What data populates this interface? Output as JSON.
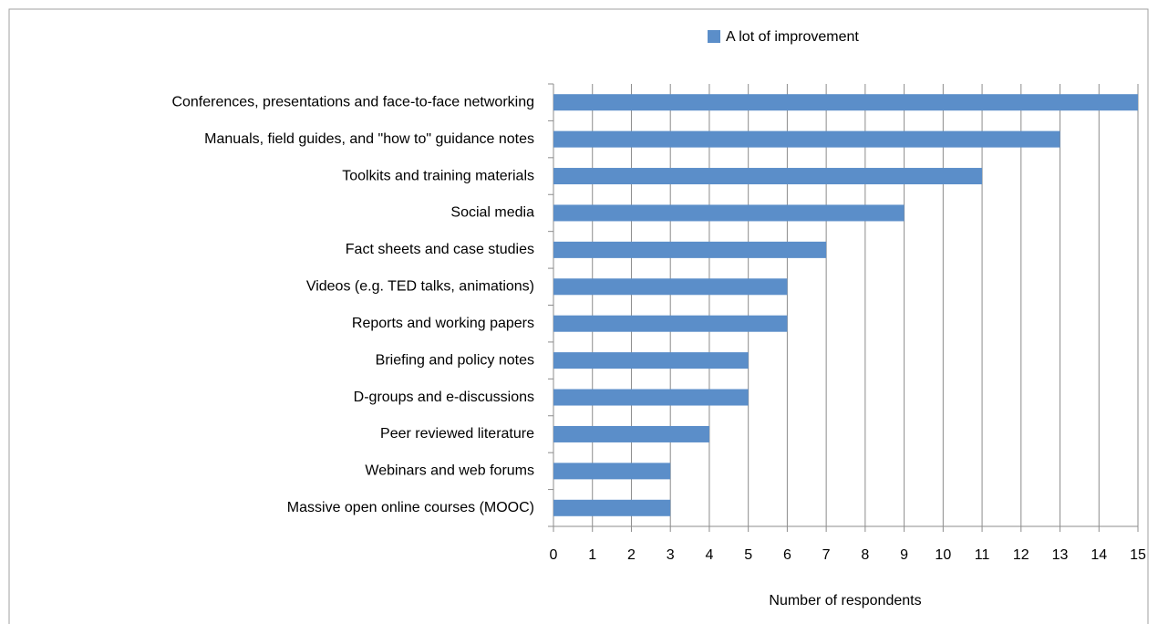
{
  "chart_data": {
    "type": "bar",
    "orientation": "horizontal",
    "categories": [
      "Conferences, presentations and face-to-face networking",
      "Manuals, field guides, and \"how to\" guidance notes",
      "Toolkits and training materials",
      "Social media",
      "Fact sheets and case studies",
      "Videos (e.g. TED talks, animations)",
      "Reports and working papers",
      "Briefing and policy notes",
      "D-groups and e-discussions",
      "Peer reviewed literature",
      "Webinars and web forums",
      "Massive open online courses (MOOC)"
    ],
    "series": [
      {
        "name": "A lot of improvement",
        "color": "#5b8ec9",
        "values": [
          15,
          13,
          11,
          9,
          7,
          6,
          6,
          5,
          5,
          4,
          3,
          3
        ]
      }
    ],
    "xlabel": "Number of respondents",
    "xlim": [
      0,
      15
    ],
    "xticks": [
      0,
      1,
      2,
      3,
      4,
      5,
      6,
      7,
      8,
      9,
      10,
      11,
      12,
      13,
      14,
      15
    ],
    "grid": true,
    "legend": "top"
  }
}
